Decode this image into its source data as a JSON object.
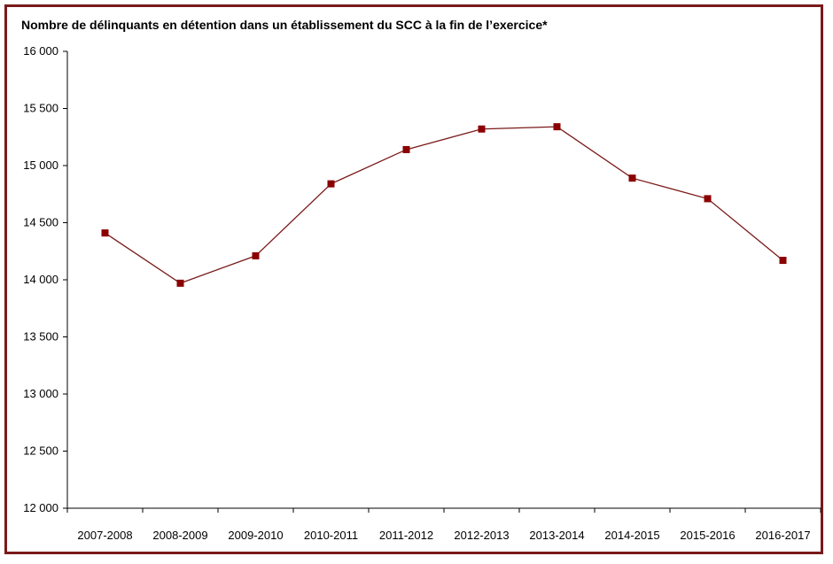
{
  "chart_data": {
    "type": "line",
    "title": "Nombre de délinquants en détention dans un établissement du SCC à la fin de l’exercice*",
    "xlabel": "",
    "ylabel": "",
    "categories": [
      "2007-2008",
      "2008-2009",
      "2009-2010",
      "2010-2011",
      "2011-2012",
      "2012-2013",
      "2013-2014",
      "2014-2015",
      "2015-2016",
      "2016-2017"
    ],
    "series": [
      {
        "values": [
          14410,
          13970,
          14210,
          14840,
          15140,
          15320,
          15340,
          14890,
          14710,
          14170
        ]
      }
    ],
    "ylim": [
      12000,
      16000
    ],
    "yticks": [
      12000,
      12500,
      13000,
      13500,
      14000,
      14500,
      15000,
      15500,
      16000
    ],
    "ytick_labels": [
      "12 000",
      "12 500",
      "13 000",
      "13 500",
      "14 000",
      "14 500",
      "15 000",
      "15 500",
      "16 000"
    ],
    "grid": false,
    "legend": "none",
    "line_color": "#7a1a1a",
    "marker_color": "#8b0000",
    "frame_color": "#7a1a1a"
  }
}
